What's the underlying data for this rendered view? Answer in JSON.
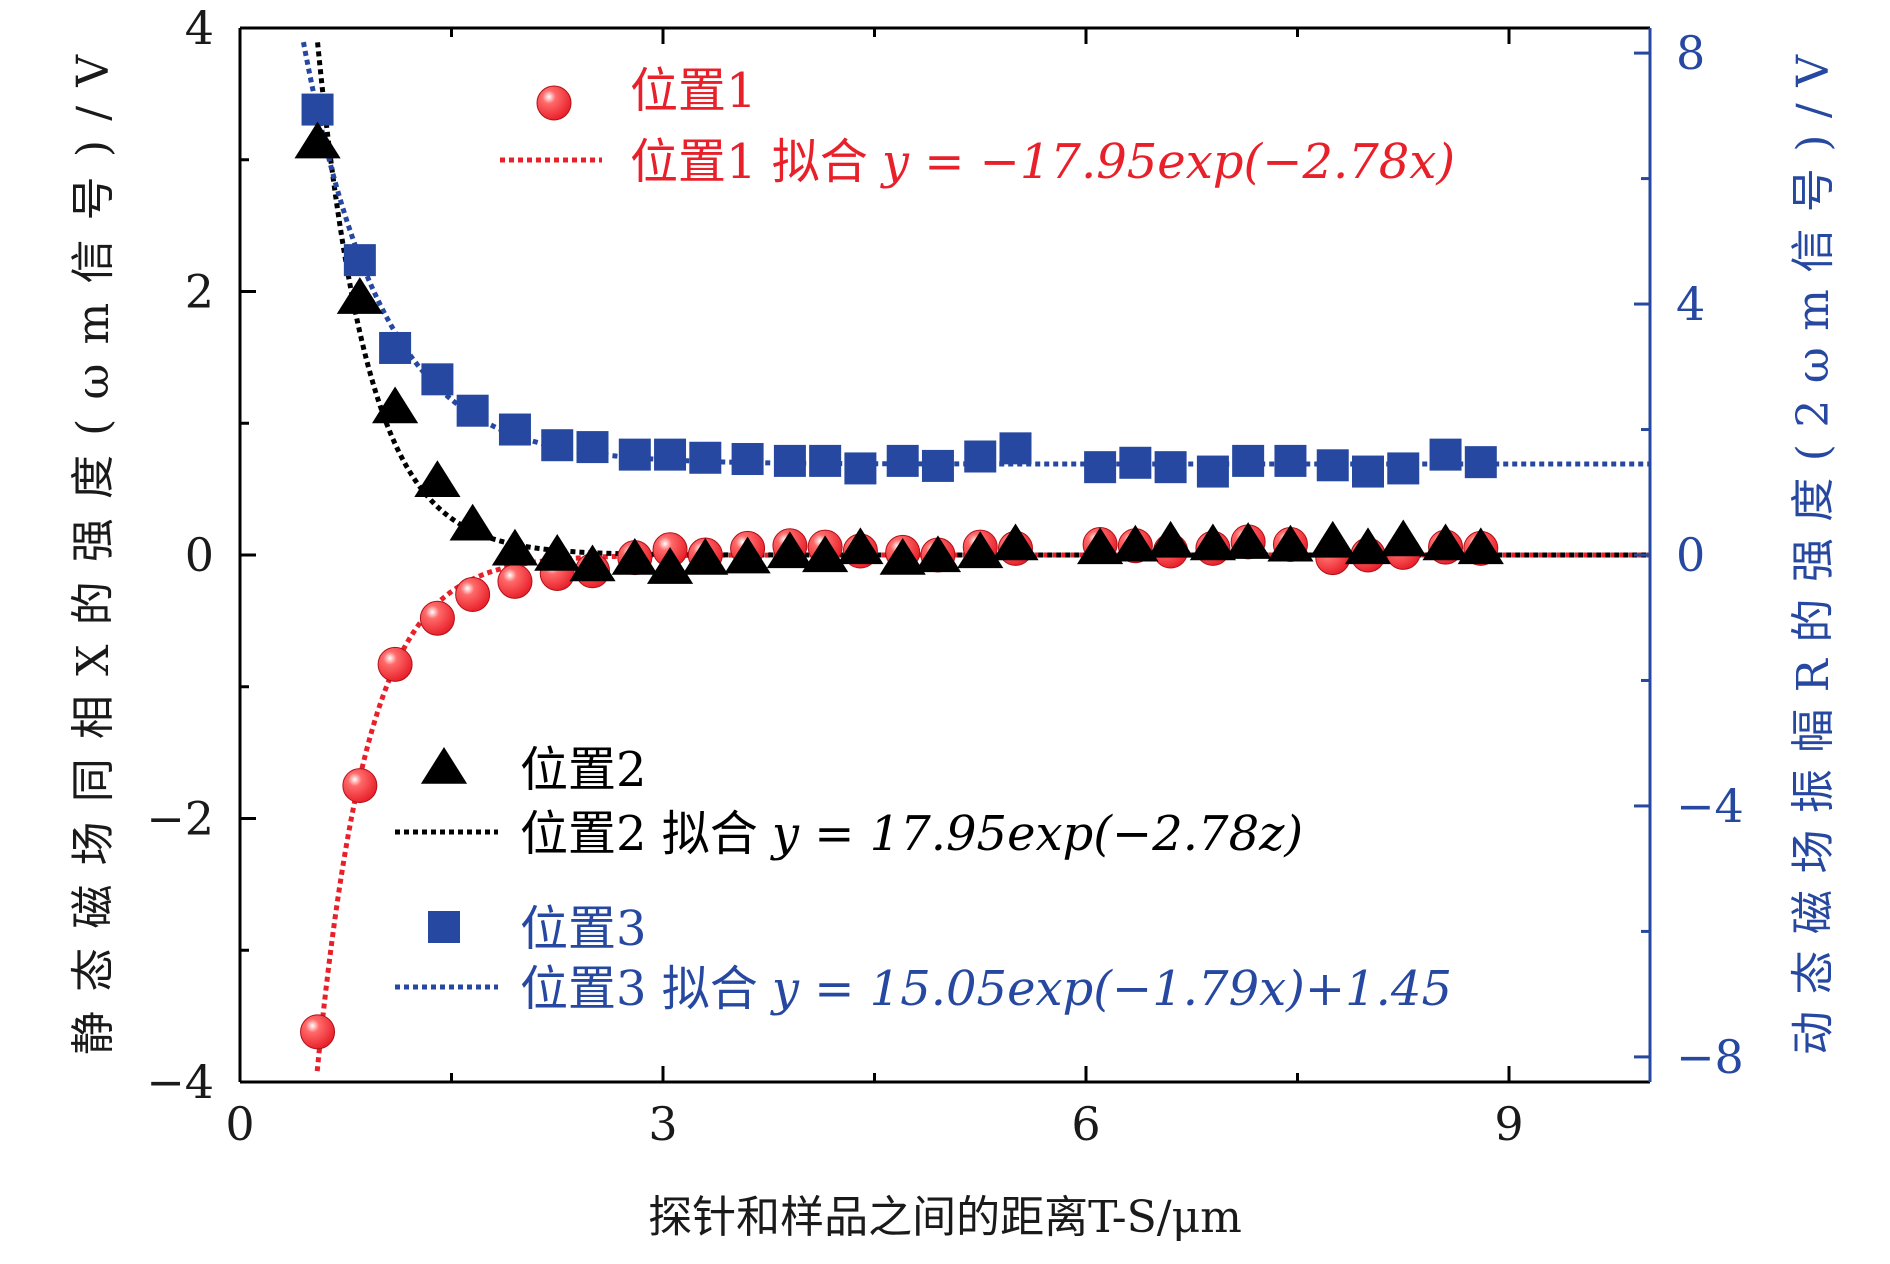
{
  "chart_data": {
    "type": "scatter",
    "xlabel": "探针和样品之间的距离T-S/μm",
    "ylabel_left": "静态磁场同相X的强度(ωm信号)/V",
    "ylabel_right": "动态磁场振幅R的强度(2ωm信号)/V",
    "xlim": [
      0,
      10
    ],
    "ylim_left": [
      -4,
      4
    ],
    "ylim_right": [
      -8.4,
      8.4
    ],
    "x_ticks": [
      0,
      3,
      6,
      9
    ],
    "x_tick_labels": [
      "0",
      "3",
      "6",
      "9"
    ],
    "y_left_ticks": [
      -4,
      -2,
      0,
      2,
      4
    ],
    "y_left_tick_labels": [
      "−4",
      "−2",
      "0",
      "2",
      "4"
    ],
    "y_right_ticks": [
      -8,
      -4,
      0,
      4,
      8
    ],
    "y_right_tick_labels": [
      "−8",
      "−4",
      "0",
      "4",
      "8"
    ],
    "colors": {
      "position1": "#e8202a",
      "position2": "#000000",
      "position3": "#2648a0",
      "right_axis": "#2648a0"
    },
    "series": [
      {
        "name": "位置1",
        "marker": "circle",
        "axis": "left",
        "x": [
          0.55,
          0.85,
          1.1,
          1.4,
          1.65,
          1.95,
          2.25,
          2.5,
          2.8,
          3.05,
          3.3,
          3.6,
          3.9,
          4.15,
          4.4,
          4.7,
          4.95,
          5.25,
          5.5,
          6.1,
          6.35,
          6.6,
          6.9,
          7.15,
          7.45,
          7.75,
          8.0,
          8.25,
          8.55,
          8.8
        ],
        "y": [
          -3.62,
          -1.75,
          -0.83,
          -0.48,
          -0.3,
          -0.2,
          -0.14,
          -0.12,
          -0.02,
          0.04,
          0.0,
          0.05,
          0.07,
          0.06,
          0.03,
          0.02,
          0.0,
          0.06,
          0.05,
          0.08,
          0.07,
          0.03,
          0.05,
          0.1,
          0.08,
          -0.02,
          0.0,
          0.02,
          0.06,
          0.05
        ]
      },
      {
        "name": "位置1 拟合y = −17.95exp(−2.78x)",
        "marker": "dotted-line",
        "axis": "left",
        "fit": {
          "a": -17.95,
          "b": -2.78,
          "c": 0,
          "x_range": [
            0.5,
            10
          ]
        }
      },
      {
        "name": "位置2",
        "marker": "triangle",
        "axis": "left",
        "x": [
          0.55,
          0.85,
          1.1,
          1.4,
          1.65,
          1.95,
          2.25,
          2.5,
          2.8,
          3.05,
          3.3,
          3.6,
          3.9,
          4.15,
          4.4,
          4.7,
          4.95,
          5.25,
          5.5,
          6.1,
          6.35,
          6.6,
          6.9,
          7.15,
          7.45,
          7.75,
          8.0,
          8.25,
          8.55,
          8.8
        ],
        "y": [
          3.13,
          1.95,
          1.12,
          0.56,
          0.23,
          0.04,
          0.0,
          -0.08,
          -0.03,
          -0.1,
          -0.03,
          -0.02,
          0.02,
          -0.01,
          0.05,
          -0.03,
          -0.01,
          0.02,
          0.08,
          0.05,
          0.07,
          0.1,
          0.08,
          0.09,
          0.07,
          0.1,
          0.05,
          0.11,
          0.08,
          0.05
        ]
      },
      {
        "name": "位置2 拟合y = 17.95exp(−2.78z)",
        "marker": "dotted-line",
        "axis": "left",
        "fit": {
          "a": 17.95,
          "b": -2.78,
          "c": 0,
          "x_range": [
            0.55,
            10
          ]
        }
      },
      {
        "name": "位置3",
        "marker": "square",
        "axis": "right",
        "x": [
          0.55,
          0.85,
          1.1,
          1.4,
          1.65,
          1.95,
          2.25,
          2.5,
          2.8,
          3.05,
          3.3,
          3.6,
          3.9,
          4.15,
          4.4,
          4.7,
          4.95,
          5.25,
          5.5,
          6.1,
          6.35,
          6.6,
          6.9,
          7.15,
          7.45,
          7.75,
          8.0,
          8.25,
          8.55,
          8.8
        ],
        "y": [
          7.1,
          4.7,
          3.3,
          2.8,
          2.3,
          2.0,
          1.75,
          1.72,
          1.6,
          1.6,
          1.55,
          1.53,
          1.5,
          1.5,
          1.38,
          1.5,
          1.42,
          1.57,
          1.7,
          1.4,
          1.47,
          1.4,
          1.33,
          1.5,
          1.5,
          1.43,
          1.33,
          1.38,
          1.6,
          1.48
        ]
      },
      {
        "name": "位置3 拟合y = 15.05exp(−1.79x)+1.45",
        "marker": "dotted-line",
        "axis": "right",
        "fit": {
          "a": 15.05,
          "b": -1.79,
          "c": 1.45,
          "x_range": [
            0.45,
            10
          ]
        }
      }
    ],
    "legend": {
      "top": {
        "marker_label": "位置1",
        "fit_prefix": "位置1 拟合",
        "fit_eq": "y = −17.95exp(−2.78x)"
      },
      "bottom": [
        {
          "marker_label": "位置2",
          "fit_prefix": "位置2 拟合",
          "fit_eq": "y = 17.95exp(−2.78z)"
        },
        {
          "marker_label": "位置3",
          "fit_prefix": "位置3 拟合",
          "fit_eq": "y = 15.05exp(−1.79x)+1.45"
        }
      ]
    }
  }
}
